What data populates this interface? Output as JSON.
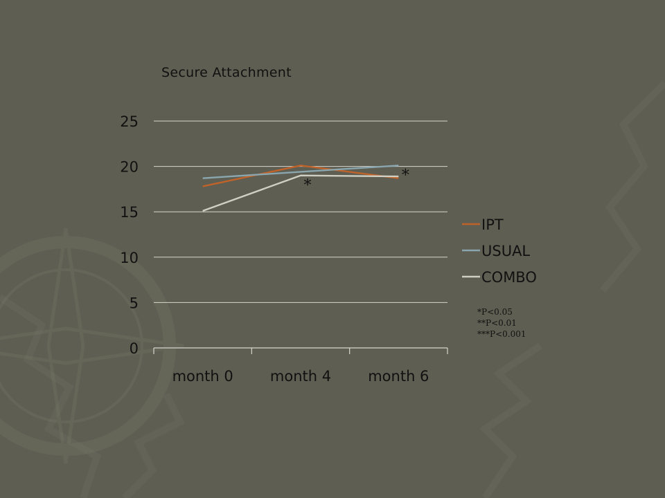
{
  "chart_data": {
    "type": "line",
    "title": "Secure Attachment",
    "xlabel": "",
    "ylabel": "",
    "categories": [
      "month 0",
      "month 4",
      "month 6"
    ],
    "ylim": [
      0,
      25
    ],
    "yticks": [
      0,
      5,
      10,
      15,
      20,
      25
    ],
    "grid": true,
    "legend_position": "right",
    "series": [
      {
        "name": "IPT",
        "values": [
          17.8,
          20.1,
          18.7
        ],
        "color": "#c0632a"
      },
      {
        "name": "USUAL",
        "values": [
          18.7,
          19.4,
          20.1
        ],
        "color": "#8aa7b0"
      },
      {
        "name": "COMBO",
        "values": [
          15.1,
          19.0,
          18.9
        ],
        "color": "#cfcfc4"
      }
    ],
    "annotations": [
      {
        "text": "*",
        "category": "month 4",
        "y": 18.3
      },
      {
        "text": "*",
        "category": "month 6",
        "y": 19.4
      }
    ],
    "significance_notes": [
      "*P<0.05",
      "**P<0.01",
      "***P<0.001"
    ]
  },
  "colors": {
    "background": "#5e5e52",
    "gridline": "#d8d8d0",
    "axis": "#d8d8d0",
    "text": "#111111"
  }
}
